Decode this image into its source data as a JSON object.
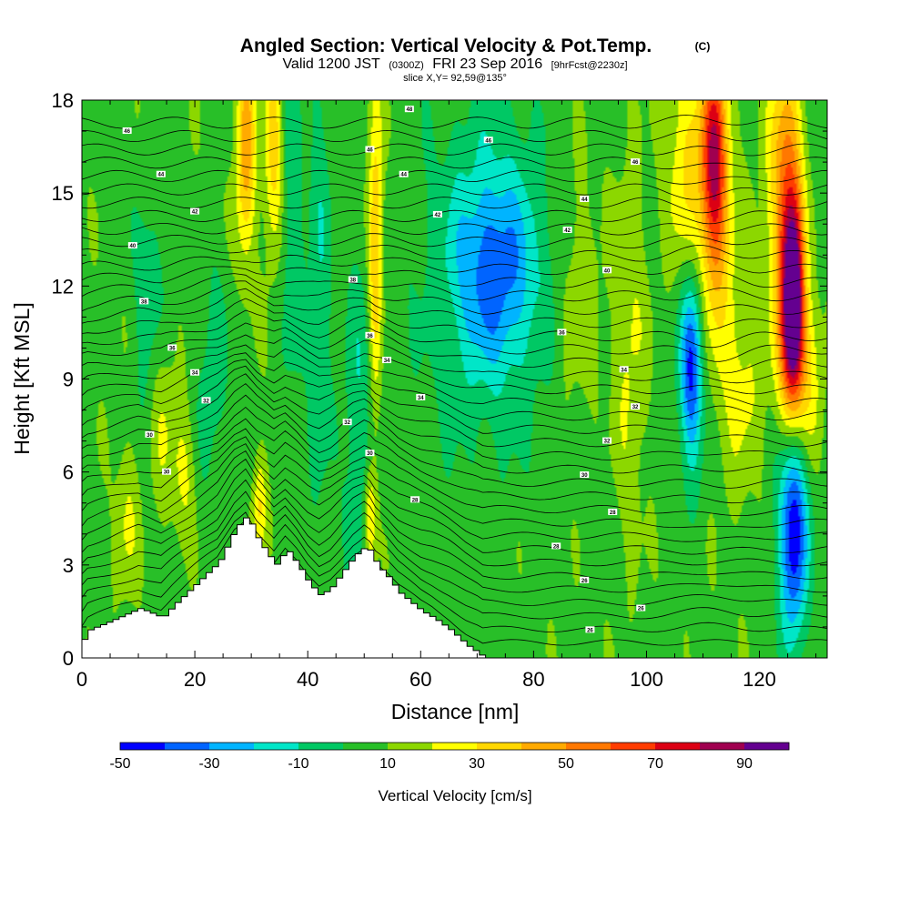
{
  "chart_data": {
    "type": "heatmap",
    "title": "Angled Section: Vertical Velocity & Pot.Temp.",
    "title_suffix": "(C)",
    "subtitle": {
      "part1": "Valid 1200 JST",
      "part2": "(0300Z)",
      "part3": "FRI 23 Sep 2016",
      "part4": "[9hrFcst@2230z]"
    },
    "subtitle2": "slice X,Y= 92,59@135°",
    "xlabel": "Distance [nm]",
    "ylabel": "Height [Kft MSL]",
    "xlim": [
      0,
      132
    ],
    "ylim": [
      0,
      18
    ],
    "x_ticks": [
      0,
      20,
      40,
      60,
      80,
      100,
      120
    ],
    "y_ticks": [
      0,
      3,
      6,
      9,
      12,
      15,
      18
    ],
    "colorbar": {
      "label": "Vertical Velocity [cm/s]",
      "levels": [
        -50,
        -40,
        -30,
        -20,
        -10,
        0,
        10,
        20,
        30,
        40,
        50,
        60,
        70,
        80,
        90,
        100
      ],
      "tick_labels": [
        "-50",
        "-30",
        "-10",
        "10",
        "30",
        "50",
        "70",
        "90"
      ],
      "colors": [
        "#0000ff",
        "#0064ff",
        "#00b4ff",
        "#00e6c8",
        "#00c864",
        "#28bf28",
        "#8cd700",
        "#ffff00",
        "#ffd700",
        "#ffaa00",
        "#ff7800",
        "#ff3c00",
        "#dc0014",
        "#a00050",
        "#640090"
      ]
    },
    "terrain": {
      "x": [
        0,
        1,
        5,
        10,
        14,
        16,
        20,
        24,
        27,
        29,
        31,
        34,
        36,
        38,
        40,
        42,
        44,
        46,
        48,
        50,
        51,
        52,
        54,
        56,
        58,
        60,
        62,
        65,
        68,
        70,
        71
      ],
      "z": [
        0.6,
        0.9,
        1.2,
        1.6,
        1.3,
        1.7,
        2.4,
        3.1,
        4.2,
        4.6,
        3.8,
        3.0,
        3.5,
        3.0,
        2.4,
        2.0,
        2.3,
        2.8,
        3.3,
        3.6,
        3.4,
        3.0,
        2.6,
        2.1,
        1.8,
        1.5,
        1.3,
        0.9,
        0.4,
        0.15,
        0
      ]
    },
    "velocity_features": [
      {
        "x": 112,
        "z": 16.0,
        "sx": 1.6,
        "sz": 2.5,
        "value": 60
      },
      {
        "x": 112,
        "z": 13.5,
        "sx": 2.5,
        "sz": 4.0,
        "value": 20
      },
      {
        "x": 107,
        "z": 15.5,
        "sx": 2.5,
        "sz": 3.0,
        "value": 25
      },
      {
        "x": 126,
        "z": 11.5,
        "sx": 1.2,
        "sz": 2.0,
        "value": 80
      },
      {
        "x": 125,
        "z": 13.5,
        "sx": 1.8,
        "sz": 3.5,
        "value": 45
      },
      {
        "x": 127,
        "z": 9.0,
        "sx": 2.5,
        "sz": 2.0,
        "value": 35
      },
      {
        "x": 124,
        "z": 16.0,
        "sx": 2.5,
        "sz": 3.0,
        "value": 15
      },
      {
        "x": 126,
        "z": 4.0,
        "sx": 1.6,
        "sz": 2.5,
        "value": -45
      },
      {
        "x": 126,
        "z": 5.5,
        "sx": 2.5,
        "sz": 3.0,
        "value": -15
      },
      {
        "x": 108,
        "z": 9.5,
        "sx": 1.3,
        "sz": 2.0,
        "value": -40
      },
      {
        "x": 108,
        "z": 10.0,
        "sx": 2.6,
        "sz": 3.5,
        "value": -15
      },
      {
        "x": 73,
        "z": 12.5,
        "sx": 5.0,
        "sz": 2.2,
        "value": -30
      },
      {
        "x": 72,
        "z": 12.5,
        "sx": 9.0,
        "sz": 4.5,
        "value": -15
      },
      {
        "x": 29,
        "z": 16.5,
        "sx": 1.2,
        "sz": 2.5,
        "value": 40
      },
      {
        "x": 34,
        "z": 16.5,
        "sx": 1.2,
        "sz": 2.5,
        "value": 30
      },
      {
        "x": 52,
        "z": 12.5,
        "sx": 0.8,
        "sz": 3.0,
        "value": 25
      },
      {
        "x": 52,
        "z": 15.0,
        "sx": 1.0,
        "sz": 4.0,
        "value": 15
      },
      {
        "x": 51,
        "z": 4.5,
        "sx": 0.8,
        "sz": 1.2,
        "value": 30
      },
      {
        "x": 31.5,
        "z": 5.0,
        "sx": 0.8,
        "sz": 1.2,
        "value": 25
      },
      {
        "x": 37,
        "z": 14.5,
        "sx": 1.5,
        "sz": 4.5,
        "value": -15
      },
      {
        "x": 42,
        "z": 12.0,
        "sx": 1.5,
        "sz": 5.5,
        "value": -15
      },
      {
        "x": 49,
        "z": 7.5,
        "sx": 2.2,
        "sz": 4.0,
        "value": -15
      },
      {
        "x": 12,
        "z": 11.0,
        "sx": 2.0,
        "sz": 3.0,
        "value": -15
      },
      {
        "x": 23,
        "z": 9.0,
        "sx": 2.0,
        "sz": 3.0,
        "value": -12
      },
      {
        "x": 14,
        "z": 8.0,
        "sx": 1.8,
        "sz": 2.2,
        "value": 15
      },
      {
        "x": 18,
        "z": 6.0,
        "sx": 1.5,
        "sz": 1.5,
        "value": 15
      },
      {
        "x": 8,
        "z": 4.5,
        "sx": 1.5,
        "sz": 1.8,
        "value": 14
      },
      {
        "x": 97,
        "z": 10.0,
        "sx": 2.0,
        "sz": 4.0,
        "value": 15
      },
      {
        "x": 117,
        "z": 9.0,
        "sx": 2.5,
        "sz": 2.5,
        "value": 15
      },
      {
        "x": 88,
        "z": 12.0,
        "sx": 3.0,
        "sz": 3.0,
        "value": 12
      }
    ],
    "theta_contours": {
      "base_kft": 0.5,
      "spacing_kft": 0.43,
      "count": 40,
      "labels": [
        {
          "x": 58,
          "z": 17.7,
          "text": "48"
        },
        {
          "x": 72,
          "z": 16.7,
          "text": "46"
        },
        {
          "x": 8,
          "z": 17.0,
          "text": "46"
        },
        {
          "x": 51,
          "z": 16.4,
          "text": "46"
        },
        {
          "x": 14,
          "z": 15.6,
          "text": "44"
        },
        {
          "x": 57,
          "z": 15.6,
          "text": "44"
        },
        {
          "x": 98,
          "z": 16.0,
          "text": "46"
        },
        {
          "x": 89,
          "z": 14.8,
          "text": "44"
        },
        {
          "x": 20,
          "z": 14.4,
          "text": "42"
        },
        {
          "x": 63,
          "z": 14.3,
          "text": "42"
        },
        {
          "x": 86,
          "z": 13.8,
          "text": "42"
        },
        {
          "x": 9,
          "z": 13.3,
          "text": "40"
        },
        {
          "x": 93,
          "z": 12.5,
          "text": "40"
        },
        {
          "x": 48,
          "z": 12.2,
          "text": "38"
        },
        {
          "x": 11,
          "z": 11.5,
          "text": "38"
        },
        {
          "x": 85,
          "z": 10.5,
          "text": "36"
        },
        {
          "x": 51,
          "z": 10.4,
          "text": "36"
        },
        {
          "x": 16,
          "z": 10.0,
          "text": "36"
        },
        {
          "x": 54,
          "z": 9.6,
          "text": "34"
        },
        {
          "x": 96,
          "z": 9.3,
          "text": "34"
        },
        {
          "x": 20,
          "z": 9.2,
          "text": "34"
        },
        {
          "x": 60,
          "z": 8.4,
          "text": "34"
        },
        {
          "x": 22,
          "z": 8.3,
          "text": "32"
        },
        {
          "x": 98,
          "z": 8.1,
          "text": "32"
        },
        {
          "x": 47,
          "z": 7.6,
          "text": "32"
        },
        {
          "x": 12,
          "z": 7.2,
          "text": "30"
        },
        {
          "x": 93,
          "z": 7.0,
          "text": "32"
        },
        {
          "x": 51,
          "z": 6.6,
          "text": "30"
        },
        {
          "x": 15,
          "z": 6.0,
          "text": "30"
        },
        {
          "x": 89,
          "z": 5.9,
          "text": "30"
        },
        {
          "x": 59,
          "z": 5.1,
          "text": "28"
        },
        {
          "x": 94,
          "z": 4.7,
          "text": "28"
        },
        {
          "x": 84,
          "z": 3.6,
          "text": "28"
        },
        {
          "x": 89,
          "z": 2.5,
          "text": "26"
        },
        {
          "x": 99,
          "z": 1.6,
          "text": "26"
        },
        {
          "x": 90,
          "z": 0.9,
          "text": "26"
        }
      ]
    }
  }
}
